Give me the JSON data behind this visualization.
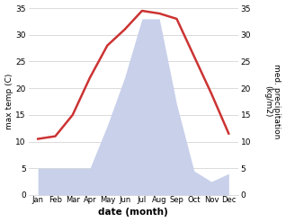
{
  "months": [
    "Jan",
    "Feb",
    "Mar",
    "Apr",
    "May",
    "Jun",
    "Jul",
    "Aug",
    "Sep",
    "Oct",
    "Nov",
    "Dec"
  ],
  "temperature": [
    10.5,
    11.0,
    15.0,
    22.0,
    28.0,
    31.0,
    34.5,
    34.0,
    33.0,
    26.0,
    19.0,
    11.5
  ],
  "precipitation": [
    5.0,
    5.0,
    5.0,
    5.0,
    13.0,
    22.0,
    33.0,
    33.0,
    17.0,
    4.5,
    2.5,
    4.0
  ],
  "temp_color": "#cc3333",
  "precip_fill_color": "#c8d0ea",
  "ylabel_left": "max temp (C)",
  "ylabel_right": "med. precipitation\n(kg/m2)",
  "xlabel": "date (month)",
  "ylim_left": [
    0,
    35
  ],
  "ylim_right": [
    0,
    35
  ],
  "yticks": [
    0,
    5,
    10,
    15,
    20,
    25,
    30,
    35
  ]
}
